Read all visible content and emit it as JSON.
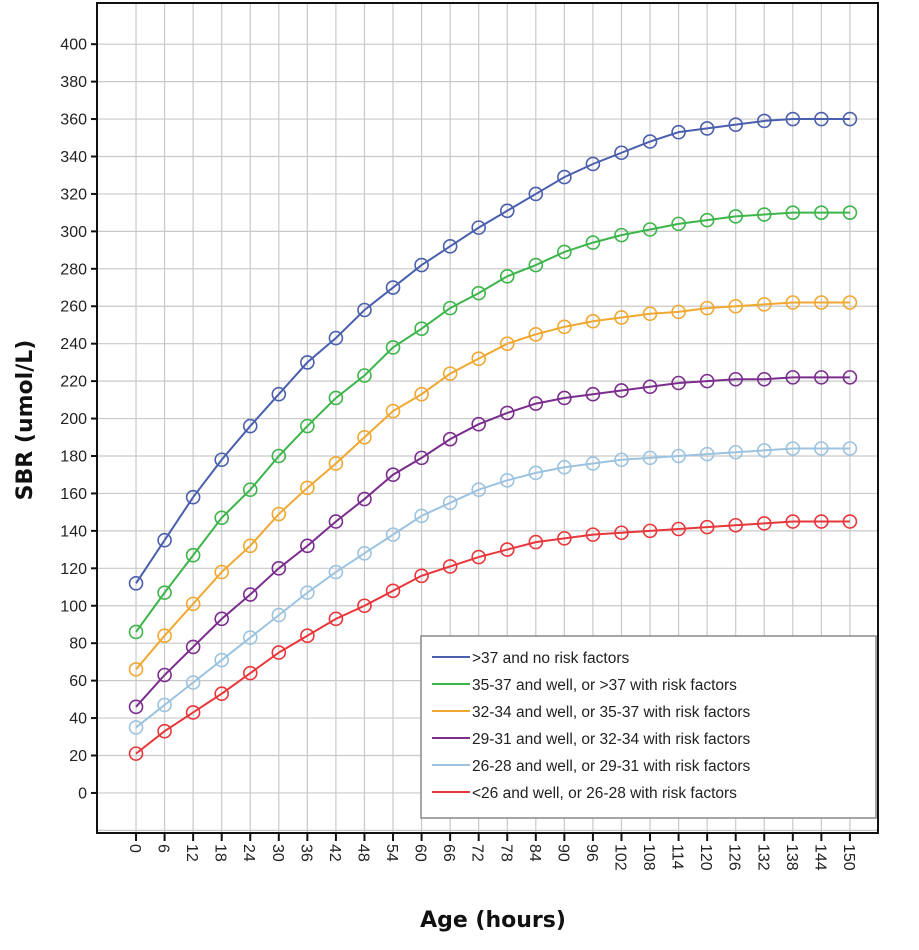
{
  "chart_data": {
    "type": "line",
    "title": "",
    "xlabel": "Age (hours)",
    "ylabel": "SBR (umol/L)",
    "x": [
      0,
      6,
      12,
      18,
      24,
      30,
      36,
      42,
      48,
      54,
      60,
      66,
      72,
      78,
      84,
      90,
      96,
      102,
      108,
      114,
      120,
      126,
      132,
      138,
      144,
      150
    ],
    "x_tick_labels": [
      "0",
      "6",
      "12",
      "18",
      "24",
      "30",
      "36",
      "42",
      "48",
      "54",
      "60",
      "66",
      "72",
      "78",
      "84",
      "90",
      "96",
      "102",
      "108",
      "114",
      "120",
      "126",
      "132",
      "138",
      "144",
      "150"
    ],
    "y_tick_labels": [
      "0",
      "20",
      "40",
      "60",
      "80",
      "100",
      "120",
      "140",
      "160",
      "180",
      "200",
      "220",
      "240",
      "260",
      "280",
      "300",
      "320",
      "340",
      "360",
      "380",
      "400"
    ],
    "y_ticks": [
      0,
      20,
      40,
      60,
      80,
      100,
      120,
      140,
      160,
      180,
      200,
      220,
      240,
      260,
      280,
      300,
      320,
      340,
      360,
      380,
      400
    ],
    "xlim": [
      -8.2,
      155.9
    ],
    "ylim": [
      -21.4,
      422
    ],
    "grid": true,
    "legend_position": "bottom-right",
    "marker": "open-circle",
    "series": [
      {
        "name": ">37 and no risk factors",
        "color": "#4a5fae",
        "values": [
          112,
          135,
          158,
          178,
          196,
          213,
          230,
          243,
          258,
          270,
          282,
          292,
          302,
          311,
          320,
          329,
          336,
          342,
          348,
          353,
          355,
          357,
          359,
          360,
          360,
          360
        ]
      },
      {
        "name": "35-37 and well, or >37  with risk factors",
        "color": "#3cb54a",
        "values": [
          86,
          107,
          127,
          147,
          162,
          180,
          196,
          211,
          223,
          238,
          248,
          259,
          267,
          276,
          282,
          289,
          294,
          298,
          301,
          304,
          306,
          308,
          309,
          310,
          310,
          310
        ]
      },
      {
        "name": "32-34 and well, or 35-37 with risk factors",
        "color": "#f0a830",
        "values": [
          66,
          84,
          101,
          118,
          132,
          149,
          163,
          176,
          190,
          204,
          213,
          224,
          232,
          240,
          245,
          249,
          252,
          254,
          256,
          257,
          259,
          260,
          261,
          262,
          262,
          262
        ]
      },
      {
        "name": "29-31 and well, or 32-34 with risk factors",
        "color": "#7b2d8e",
        "values": [
          46,
          63,
          78,
          93,
          106,
          120,
          132,
          145,
          157,
          170,
          179,
          189,
          197,
          203,
          208,
          211,
          213,
          215,
          217,
          219,
          220,
          221,
          221,
          222,
          222,
          222
        ]
      },
      {
        "name": "26-28 and well, or 29-31 with risk factors",
        "color": "#9cc3e0",
        "values": [
          35,
          47,
          59,
          71,
          83,
          95,
          107,
          118,
          128,
          138,
          148,
          155,
          162,
          167,
          171,
          174,
          176,
          178,
          179,
          180,
          181,
          182,
          183,
          184,
          184,
          184
        ]
      },
      {
        "name": "<26 and well, or 26-28 with risk factors",
        "color": "#e8363a",
        "values": [
          21,
          33,
          43,
          53,
          64,
          75,
          84,
          93,
          100,
          108,
          116,
          121,
          126,
          130,
          134,
          136,
          138,
          139,
          140,
          141,
          142,
          143,
          144,
          145,
          145,
          145
        ]
      }
    ]
  }
}
